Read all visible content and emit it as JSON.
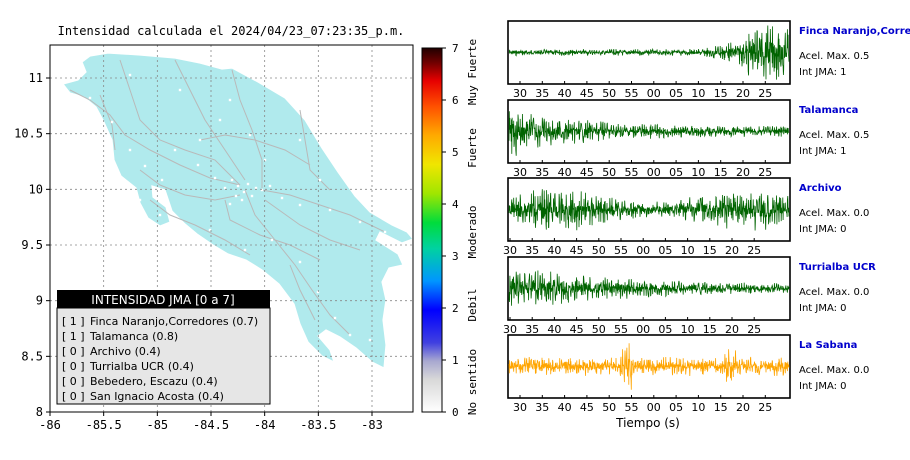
{
  "title": "Intensidad calculada el 2024/04/23_07:23:35_p.m.",
  "map": {
    "lat_ticks": [
      "8",
      "8.5",
      "9",
      "9.5",
      "10",
      "10.5",
      "11"
    ],
    "lon_ticks": [
      "-86",
      "-85.5",
      "-85",
      "-84.5",
      "-84",
      "-83.5",
      "-83"
    ],
    "land_color": "#b0eaed",
    "border_color": "#ffffff",
    "road_color": "#b9b9b9"
  },
  "colorbar": {
    "ticks": [
      "0",
      "1",
      "2",
      "3",
      "4",
      "5",
      "6",
      "7"
    ],
    "categories": [
      "No sentido",
      "Debil",
      "Moderado",
      "Fuerte",
      "Muy Fuerte"
    ]
  },
  "legend": {
    "title": "INTENSIDAD JMA [0 a 7]",
    "items": [
      {
        "level": "[ 1 ]",
        "name": "Finca Naranjo,Corredores (0.7)"
      },
      {
        "level": "[ 1 ]",
        "name": "Talamanca (0.8)"
      },
      {
        "level": "[ 0 ]",
        "name": "Archivo (0.4)"
      },
      {
        "level": "[ 0 ]",
        "name": "Turrialba UCR (0.4)"
      },
      {
        "level": "[ 0 ]",
        "name": "Bebedero, Escazu (0.4)"
      },
      {
        "level": "[ 0 ]",
        "name": "San Ignacio Acosta (0.4)"
      }
    ]
  },
  "stations": [
    {
      "name": "Finca Naranjo,Corredores",
      "acel": "Acel. Max. 0.5",
      "int": "Int JMA: 1",
      "ticks": [
        "30",
        "35",
        "40",
        "45",
        "50",
        "55",
        "00",
        "05",
        "10",
        "15",
        "20",
        "25"
      ],
      "color": "#006400"
    },
    {
      "name": "Talamanca",
      "acel": "Acel. Max. 0.5",
      "int": "Int JMA: 1",
      "ticks": [
        "30",
        "35",
        "40",
        "45",
        "50",
        "55",
        "00",
        "05",
        "10",
        "15",
        "20",
        "25"
      ],
      "color": "#006400"
    },
    {
      "name": "Archivo",
      "acel": "Acel. Max. 0.0",
      "int": "Int JMA: 0",
      "ticks": [
        "30",
        "35",
        "40",
        "45",
        "50",
        "55",
        "00",
        "05",
        "10",
        "15",
        "20",
        "25"
      ],
      "color": "#006400"
    },
    {
      "name": "Turrialba UCR",
      "acel": "Acel. Max. 0.0",
      "int": "Int JMA: 0",
      "ticks": [
        "30",
        "35",
        "40",
        "45",
        "50",
        "55",
        "00",
        "05",
        "10",
        "15",
        "20",
        "25"
      ],
      "color": "#006400"
    },
    {
      "name": "La Sabana",
      "acel": "Acel. Max. 0.0",
      "int": "Int JMA: 0",
      "ticks": [
        "30",
        "35",
        "40",
        "45",
        "50",
        "55",
        "00",
        "05",
        "10",
        "15",
        "20",
        "25"
      ],
      "color": "#ffa500"
    }
  ],
  "time_axis_label": "Tiempo (s)",
  "station_name_color": "#0000cc"
}
